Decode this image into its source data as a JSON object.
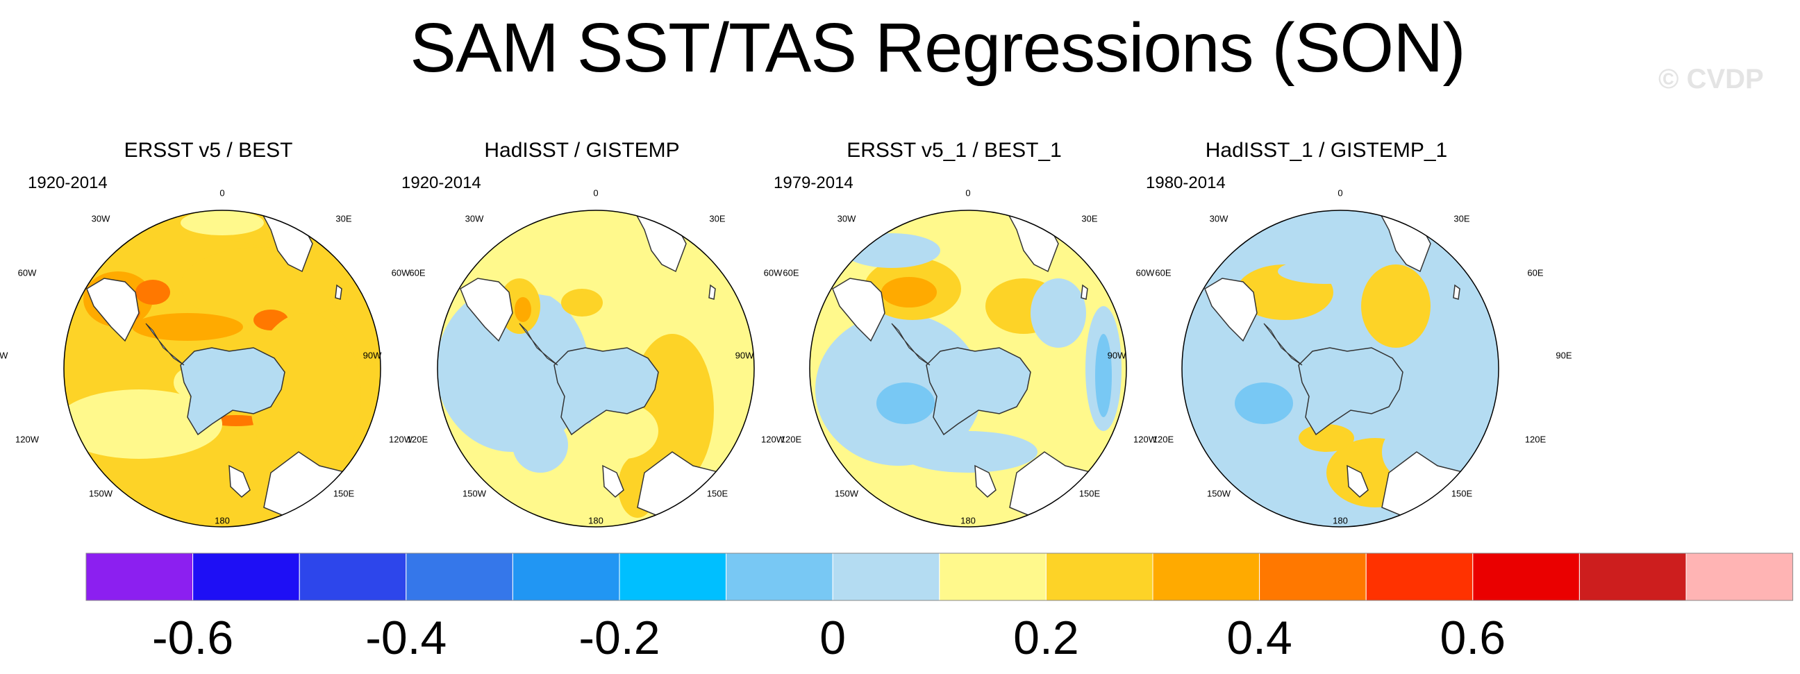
{
  "title": "SAM SST/TAS Regressions (SON)",
  "watermark": "© CVDP",
  "panels": [
    {
      "title": "ERSST v5 / BEST",
      "period": "1920-2014",
      "level": 9
    },
    {
      "title": "HadISST / GISTEMP",
      "period": "1920-2014",
      "level": 8
    },
    {
      "title": "ERSST v5_1 / BEST_1",
      "period": "1979-2014",
      "level": 8
    },
    {
      "title": "HadISST_1 / GISTEMP_1",
      "period": "1980-2014",
      "level": 7
    }
  ],
  "lon_labels": [
    "0",
    "30E",
    "60E",
    "90E",
    "120E",
    "150E",
    "180",
    "150W",
    "120W",
    "90W",
    "60W",
    "30W"
  ],
  "colorbar": {
    "colors": [
      "#8c1ff0",
      "#1e0ff5",
      "#2d46eb",
      "#3577ea",
      "#2196f3",
      "#00bfff",
      "#78c8f4",
      "#b4dcf2",
      "#fff98c",
      "#fdd327",
      "#ffaa00",
      "#ff7800",
      "#ff3200",
      "#ea0000",
      "#cd1e1e",
      "#ffb4b4"
    ],
    "tick_labels": [
      "-0.6",
      "-0.4",
      "-0.2",
      "0",
      "0.2",
      "0.4",
      "0.6"
    ]
  },
  "chart_data": {
    "type": "heatmap",
    "title": "SAM SST/TAS Regressions (SON)",
    "projection": "south polar stereographic",
    "colorbar_levels": [
      -0.7,
      -0.6,
      -0.5,
      -0.4,
      -0.3,
      -0.2,
      -0.1,
      0,
      0.1,
      0.2,
      0.3,
      0.4,
      0.5,
      0.6,
      0.7
    ],
    "series": [
      {
        "name": "ERSST v5 / BEST",
        "period": "1920-2014",
        "range": [
          0.0,
          0.5
        ],
        "dominant": "0.1 to 0.3"
      },
      {
        "name": "HadISST / GISTEMP",
        "period": "1920-2014",
        "range": [
          -0.2,
          0.4
        ],
        "dominant": "-0.1 to 0.2"
      },
      {
        "name": "ERSST v5_1 / BEST_1",
        "period": "1979-2014",
        "range": [
          -0.3,
          0.3
        ],
        "dominant": "-0.1 to 0.1"
      },
      {
        "name": "HadISST_1 / GISTEMP_1",
        "period": "1980-2014",
        "range": [
          -0.3,
          0.3
        ],
        "dominant": "-0.1 to 0.1"
      }
    ]
  }
}
